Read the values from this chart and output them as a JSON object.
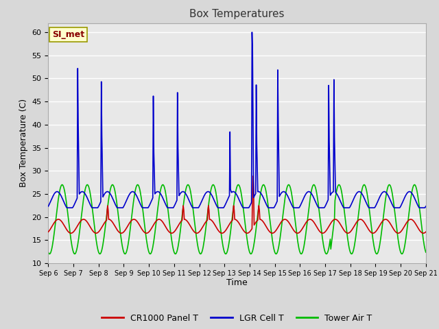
{
  "title": "Box Temperatures",
  "xlabel": "Time",
  "ylabel": "Box Temperature (C)",
  "ylim": [
    10,
    62
  ],
  "yticks": [
    10,
    15,
    20,
    25,
    30,
    35,
    40,
    45,
    50,
    55,
    60
  ],
  "fig_bg_color": "#d8d8d8",
  "axes_bg_color": "#e8e8e8",
  "annotation_text": "SI_met",
  "annotation_bg": "#ffffcc",
  "annotation_border": "#999900",
  "annotation_text_color": "#880000",
  "series": {
    "CR1000 Panel T": {
      "color": "#cc0000",
      "lw": 1.2
    },
    "LGR Cell T": {
      "color": "#0000cc",
      "lw": 1.2
    },
    "Tower Air T": {
      "color": "#00bb00",
      "lw": 1.2
    }
  },
  "x_ticks": [
    6,
    7,
    8,
    9,
    10,
    11,
    12,
    13,
    14,
    15,
    16,
    17,
    18,
    19,
    20,
    21
  ],
  "x_tick_labels": [
    "Sep 6",
    "Sep 7",
    "Sep 8",
    "Sep 9",
    "Sep 10",
    "Sep 11",
    "Sep 12",
    "Sep 13",
    "Sep 14",
    "Sep 15",
    "Sep 16",
    "Sep 17",
    "Sep 18",
    "Sep 19",
    "Sep 20",
    "Sep 21"
  ]
}
